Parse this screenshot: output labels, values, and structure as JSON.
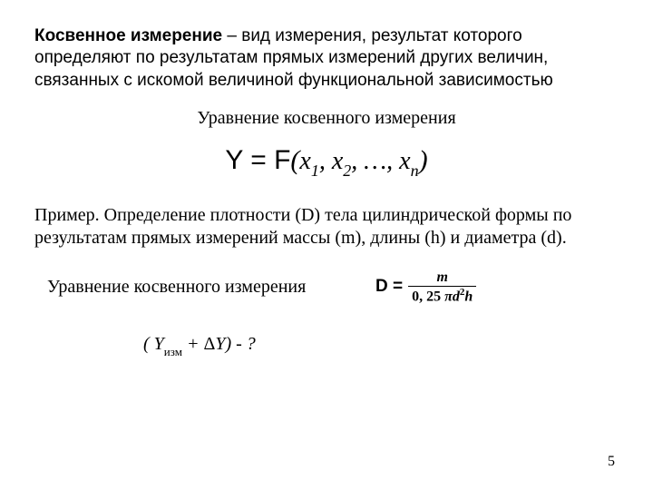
{
  "definition": {
    "term": "Косвенное измерение",
    "dash": " – ",
    "rest": "вид измерения, результат которого определяют по результатам прямых измерений других величин, связанных с искомой величиной функциональной зависимостью"
  },
  "eq_title": "Уравнение косвенного измерения",
  "main_eq": {
    "Y": "Y",
    "eq": " = ",
    "F": "F",
    "open": "(",
    "x": "x",
    "s1": "1",
    "c1": ", ",
    "s2": "2",
    "c2": ", …, ",
    "sn": "n",
    "close": ")"
  },
  "example": "Пример. Определение плотности (D) тела цилиндрической формы по результатам прямых измерений массы (m), длины (h) и диаметра (d).",
  "row2_label": "Уравнение косвенного измерения",
  "density_eq": {
    "D": "D = ",
    "num": "m",
    "den_prefix": "0, 25 ",
    "den_pi": "π",
    "den_d": "d",
    "den_exp": "2",
    "den_h": "h"
  },
  "question": {
    "open": "( ",
    "Y": "Y",
    "izm": "изм",
    "plus": " + ",
    "delta": "Δ",
    "Y2": "Y",
    "close": ") - ?"
  },
  "pagenum": "5",
  "colors": {
    "text": "#000000",
    "bg": "#ffffff"
  }
}
